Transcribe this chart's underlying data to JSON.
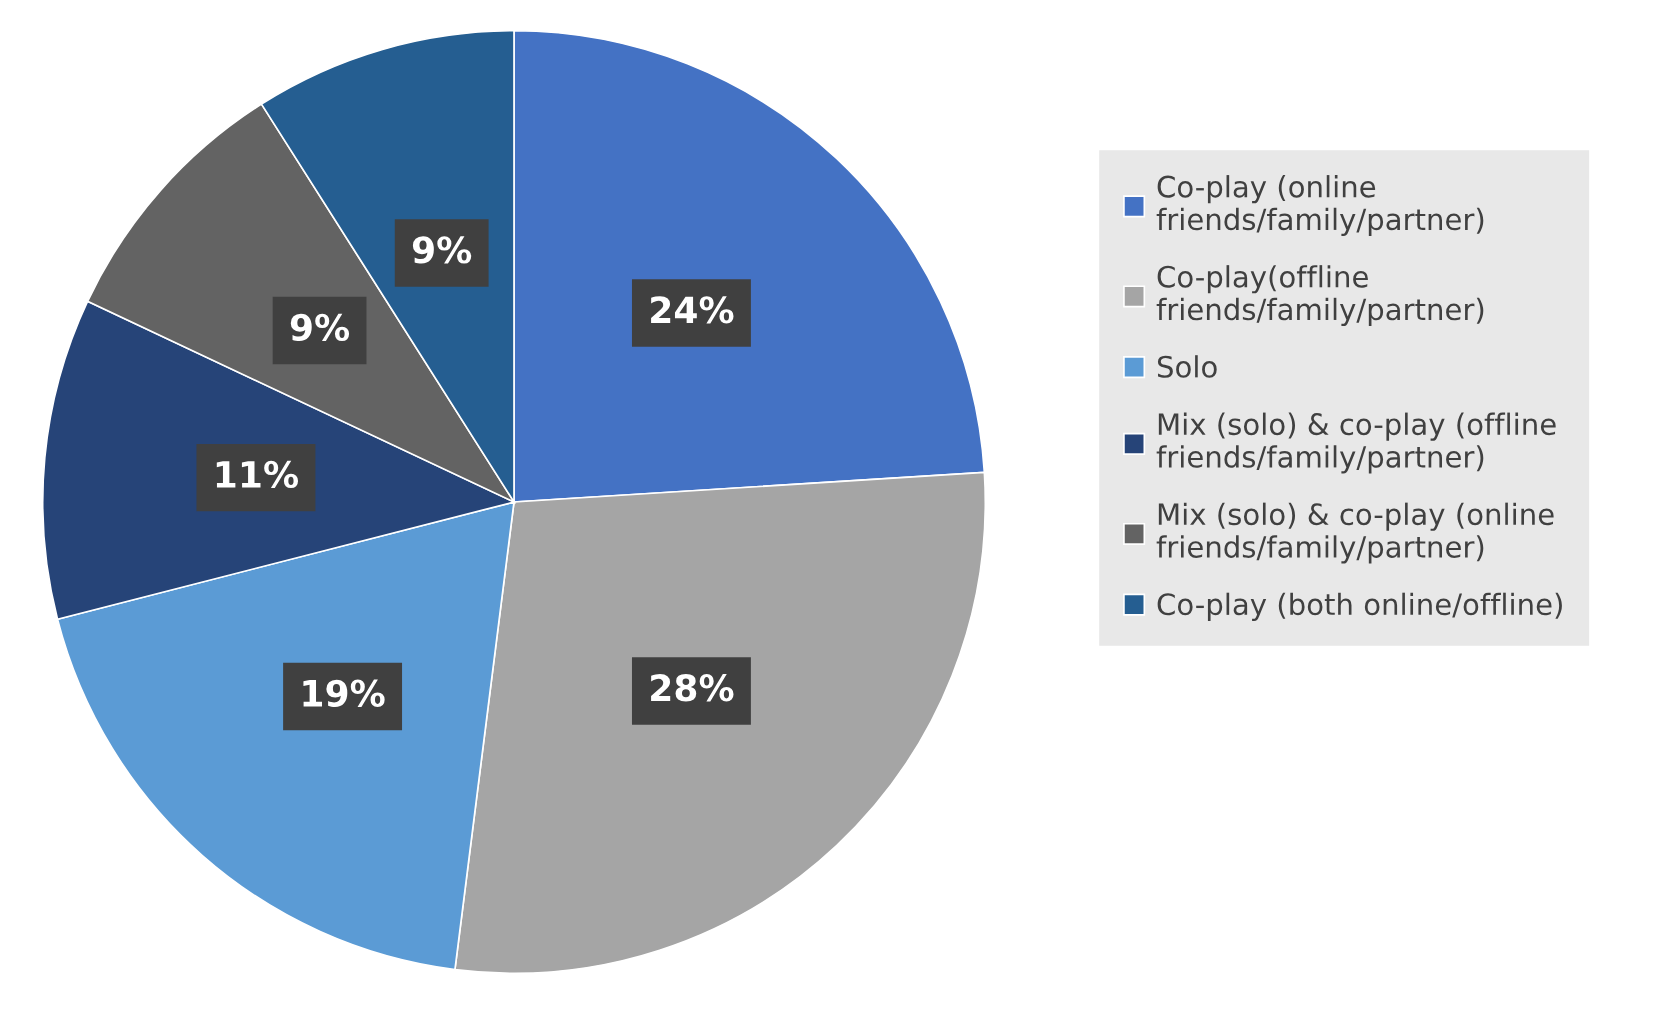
{
  "chart_data": {
    "type": "pie",
    "categories": [
      "Co-play (online\nfriends/family/partner)",
      "Co-play(offline\nfriends/family/partner)",
      "Solo",
      "Mix (solo) & co-play (offline\nfriends/family/partner)",
      "Mix (solo) & co-play (online\nfriends/family/partner)",
      "Co-play (both online/offline)"
    ],
    "values": [
      24,
      28,
      19,
      11,
      9,
      9
    ],
    "colors": [
      "#4472c4",
      "#a5a5a5",
      "#5b9bd5",
      "#264478",
      "#636363",
      "#255e91"
    ],
    "value_labels": [
      "24%",
      "28%",
      "19%",
      "11%",
      "9%",
      "9%"
    ],
    "legend": "right"
  }
}
